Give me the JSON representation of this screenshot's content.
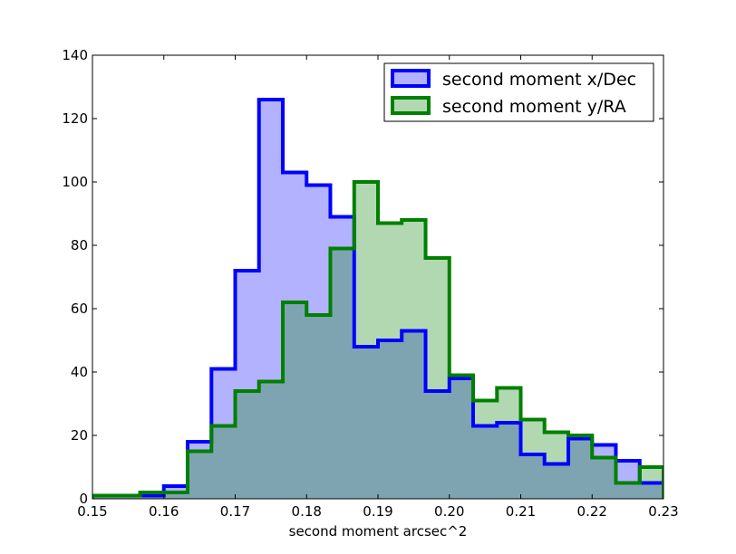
{
  "chart_data": {
    "type": "histogram",
    "title": "",
    "xlabel": "second moment arcsec^2",
    "ylabel": "",
    "xlim": [
      0.15,
      0.23
    ],
    "ylim": [
      0,
      140
    ],
    "xticks": [
      "0.15",
      "0.16",
      "0.17",
      "0.18",
      "0.19",
      "0.20",
      "0.21",
      "0.22",
      "0.23"
    ],
    "yticks": [
      "0",
      "20",
      "40",
      "60",
      "80",
      "100",
      "120",
      "140"
    ],
    "grid": false,
    "legend_position": "top-right",
    "bin_edges": [
      0.15,
      0.15333,
      0.15667,
      0.16,
      0.16333,
      0.16667,
      0.17,
      0.17333,
      0.17667,
      0.18,
      0.18333,
      0.18667,
      0.19,
      0.19333,
      0.19667,
      0.2,
      0.20333,
      0.20667,
      0.21,
      0.21333,
      0.21667,
      0.22,
      0.22333,
      0.22667,
      0.23
    ],
    "series": [
      {
        "name": "second moment x/Dec",
        "edge_color": "#0000ff",
        "fill_color": "#b2b2ff",
        "counts": [
          1,
          1,
          1,
          4,
          18,
          41,
          72,
          126,
          103,
          99,
          89,
          48,
          50,
          53,
          34,
          38,
          23,
          24,
          14,
          11,
          19,
          17,
          12,
          5
        ]
      },
      {
        "name": "second moment y/RA",
        "edge_color": "#008000",
        "fill_color": "#b2d8b2",
        "counts": [
          1,
          1,
          2,
          2,
          15,
          23,
          34,
          37,
          62,
          58,
          79,
          100,
          87,
          88,
          76,
          39,
          31,
          35,
          25,
          21,
          20,
          13,
          5,
          10
        ]
      }
    ],
    "overlap_color": "#7ea4b2"
  }
}
